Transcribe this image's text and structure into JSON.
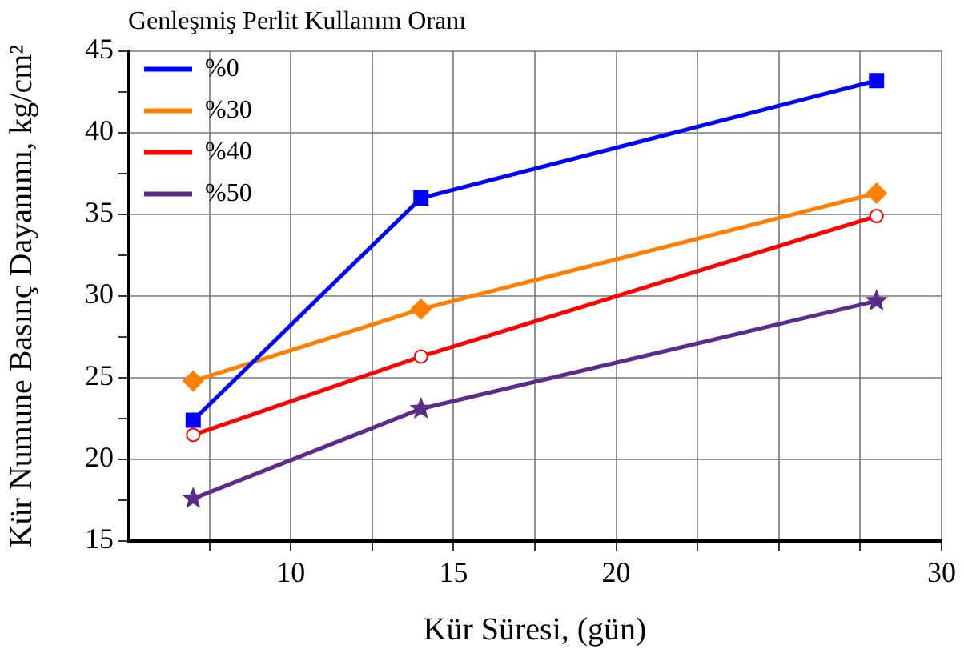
{
  "chart_data": {
    "type": "line",
    "xlabel": "Kür Süresi, (gün)",
    "ylabel": "Kür Numune Basınç Dayanımı, kg/cm²",
    "legend_title": "Genleşmiş Perlit Kullanım Oranı",
    "legend": "top left",
    "grid": true,
    "line_style": "solid",
    "x": [
      7,
      14,
      28
    ],
    "xlim": [
      5,
      30
    ],
    "xticks": [
      {
        "value": 7.5,
        "label": null
      },
      10,
      {
        "value": 12.5,
        "label": null
      },
      15,
      {
        "value": 17.5,
        "label": null
      },
      20,
      {
        "value": 22.5,
        "label": null
      },
      {
        "value": 25,
        "label": null
      },
      {
        "value": 27.5,
        "label": null
      },
      30
    ],
    "ylim": [
      15,
      45
    ],
    "yticks": [
      15,
      {
        "value": 17.5,
        "label": null
      },
      20,
      {
        "value": 22.5,
        "label": null
      },
      25,
      {
        "value": 27.5,
        "label": null
      },
      30,
      {
        "value": 32.5,
        "label": null
      },
      35,
      {
        "value": 37.5,
        "label": null
      },
      40,
      {
        "value": 42.5,
        "label": null
      },
      45
    ],
    "series": [
      {
        "name": "%0",
        "color": "#0000ff",
        "marker": "square",
        "values": [
          22.4,
          36.0,
          43.2
        ]
      },
      {
        "name": "%30",
        "color": "#ff8000",
        "marker": "diamond",
        "values": [
          24.8,
          29.2,
          36.3
        ]
      },
      {
        "name": "%40",
        "color": "#ff0000",
        "marker": "circle",
        "values": [
          21.5,
          26.3,
          34.9
        ]
      },
      {
        "name": "%50",
        "color": "#5b2c8a",
        "marker": "star",
        "values": [
          17.6,
          23.1,
          29.7
        ]
      }
    ]
  }
}
